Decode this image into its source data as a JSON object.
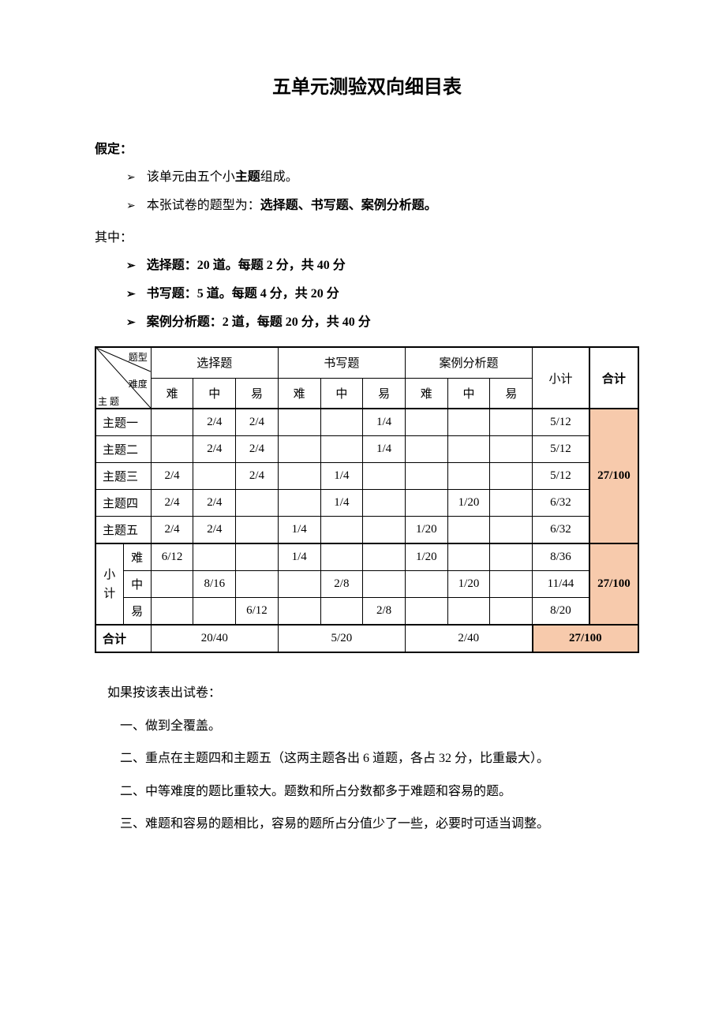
{
  "title": "五单元测验双向细目表",
  "assume_label": "假定：",
  "bullets_top": [
    {
      "pre": "该单元由五个小",
      "bold": "主题",
      "post": "组成。"
    },
    {
      "pre": "本张试卷的题型为：",
      "bold": "选择题、书写题、案例分析题。",
      "post": ""
    }
  ],
  "among_label": "其中：",
  "bullets_bold": [
    "选择题：20 道。每题 2 分，共 40 分",
    "书写题：5 道。每题 4 分，共 20 分",
    "案例分析题：2 道，每题 20 分，共 40 分"
  ],
  "diag_labels": {
    "top": "题型",
    "mid": "难度",
    "bot": "主\n题"
  },
  "col_groups": [
    "选择题",
    "书写题",
    "案例分析题"
  ],
  "col_subtotal": "小计",
  "col_total": "合计",
  "difficulty": [
    "难",
    "中",
    "易"
  ],
  "rows": [
    {
      "label": "主题一",
      "cells": [
        "",
        "2/4",
        "2/4",
        "",
        "",
        "1/4",
        "",
        "",
        ""
      ],
      "subtotal": "5/12"
    },
    {
      "label": "主题二",
      "cells": [
        "",
        "2/4",
        "2/4",
        "",
        "",
        "1/4",
        "",
        "",
        ""
      ],
      "subtotal": "5/12"
    },
    {
      "label": "主题三",
      "cells": [
        "2/4",
        "",
        "2/4",
        "",
        "1/4",
        "",
        "",
        "",
        ""
      ],
      "subtotal": "5/12"
    },
    {
      "label": "主题四",
      "cells": [
        "2/4",
        "2/4",
        "",
        "",
        "1/4",
        "",
        "",
        "1/20",
        ""
      ],
      "subtotal": "6/32"
    },
    {
      "label": "主题五",
      "cells": [
        "2/4",
        "2/4",
        "",
        "1/4",
        "",
        "",
        "1/20",
        "",
        ""
      ],
      "subtotal": "6/32"
    }
  ],
  "rows_total_merged": "27/100",
  "subtotal_block_label": "小\n计",
  "subtotal_rows": [
    {
      "label": "难",
      "cells": [
        "6/12",
        "",
        "",
        "1/4",
        "",
        "",
        "1/20",
        "",
        ""
      ],
      "subtotal": "8/36"
    },
    {
      "label": "中",
      "cells": [
        "",
        "8/16",
        "",
        "",
        "2/8",
        "",
        "",
        "1/20",
        ""
      ],
      "subtotal": "11/44"
    },
    {
      "label": "易",
      "cells": [
        "",
        "",
        "6/12",
        "",
        "",
        "2/8",
        "",
        "",
        ""
      ],
      "subtotal": "8/20"
    }
  ],
  "subtotal_total_merged": "27/100",
  "footer_label": "合计",
  "footer_cells": [
    "20/40",
    "5/20",
    "2/40"
  ],
  "footer_total": "27/100",
  "highlight_color": "#f7caac",
  "notes_lead": "如果按该表出试卷：",
  "notes": [
    "一、做到全覆盖。",
    "二、重点在主题四和主题五（这两主题各出 6 道题，各占 32 分，比重最大）。",
    "二、中等难度的题比重较大。题数和所占分数都多于难题和容易的题。",
    "三、难题和容易的题相比，容易的题所占分值少了一些，必要时可适当调整。"
  ]
}
